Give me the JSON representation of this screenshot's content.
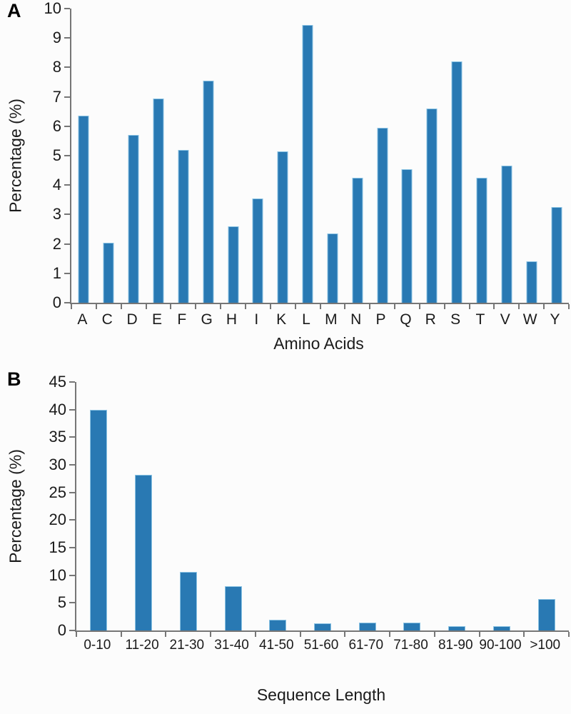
{
  "colors": {
    "bar_fill": "#2979b3",
    "bar_border": "#8cc4e4",
    "axis_line": "#767676",
    "text": "#1a1a1a"
  },
  "chart_data": [
    {
      "type": "bar",
      "panel_label": "A",
      "xlabel": "Amino Acids",
      "ylabel": "Percentage (%)",
      "categories": [
        "A",
        "C",
        "D",
        "E",
        "F",
        "G",
        "H",
        "I",
        "K",
        "L",
        "M",
        "N",
        "P",
        "Q",
        "R",
        "S",
        "T",
        "V",
        "W",
        "Y"
      ],
      "values": [
        6.35,
        2.05,
        5.7,
        6.95,
        5.2,
        7.55,
        2.6,
        3.55,
        5.15,
        9.45,
        2.35,
        4.25,
        5.95,
        4.55,
        6.6,
        8.2,
        4.25,
        4.65,
        1.4,
        3.25
      ],
      "ylim": [
        0,
        10
      ],
      "ytick_step": 1,
      "grid": false,
      "legend": null
    },
    {
      "type": "bar",
      "panel_label": "B",
      "xlabel": "Sequence Length",
      "ylabel": "Percentage (%)",
      "categories": [
        "0-10",
        "11-20",
        "21-30",
        "31-40",
        "41-50",
        "51-60",
        "61-70",
        "71-80",
        "81-90",
        "90-100",
        ">100"
      ],
      "values": [
        40,
        28.2,
        10.6,
        8.0,
        2.0,
        1.3,
        1.4,
        1.4,
        0.8,
        0.8,
        5.7
      ],
      "ylim": [
        0,
        45
      ],
      "ytick_step": 5,
      "grid": false,
      "legend": null
    }
  ]
}
